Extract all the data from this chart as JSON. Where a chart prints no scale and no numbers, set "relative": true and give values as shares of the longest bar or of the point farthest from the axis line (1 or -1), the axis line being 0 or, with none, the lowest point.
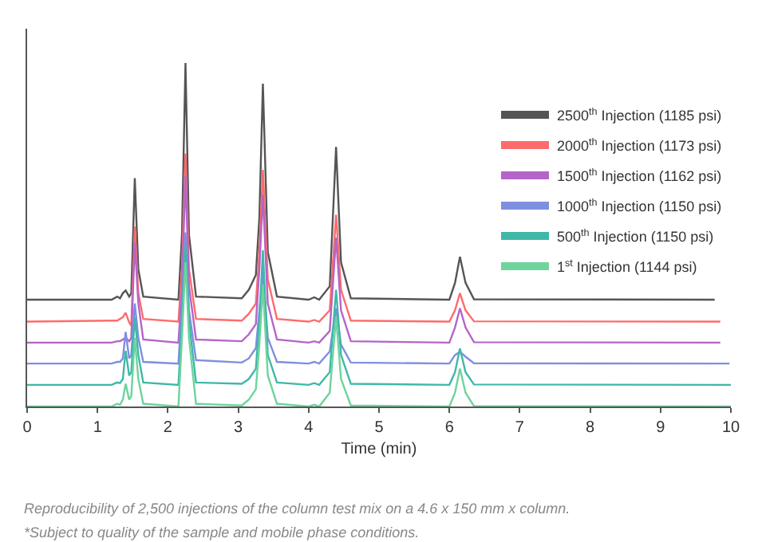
{
  "chart_data": {
    "type": "line",
    "relative": true,
    "xlabel": "Time (min)",
    "xlim": [
      0,
      10
    ],
    "xticks": [
      0,
      1,
      2,
      3,
      4,
      5,
      6,
      7,
      8,
      9,
      10
    ],
    "tick_labels": "x",
    "legend": "right",
    "marker": "none",
    "line_style": "solid",
    "annotations": [
      "Reproducibility of 2,500 injections of the column test mix on a 4.6 x 150 mm x column.",
      "*Subject to quality of the sample and mobile phase conditions."
    ],
    "series": [
      {
        "name": "2500$^{th}$ Injection (1185 psi)",
        "color": "#555555",
        "x": [
          0,
          1.2,
          1.28,
          1.32,
          1.36,
          1.4,
          1.45,
          1.48,
          1.53,
          1.58,
          1.65,
          2.15,
          2.2,
          2.25,
          2.3,
          2.4,
          3.05,
          3.15,
          3.25,
          3.3,
          3.35,
          3.42,
          3.55,
          4.0,
          4.08,
          4.15,
          4.3,
          4.39,
          4.46,
          4.6,
          6.0,
          6.08,
          6.15,
          6.23,
          6.35,
          9.77
        ],
        "values": [
          0.311,
          0.311,
          0.32,
          0.315,
          0.33,
          0.338,
          0.32,
          0.33,
          0.665,
          0.4,
          0.32,
          0.311,
          0.5,
          1.0,
          0.5,
          0.32,
          0.315,
          0.34,
          0.383,
          0.55,
          0.94,
          0.45,
          0.32,
          0.311,
          0.318,
          0.311,
          0.35,
          0.756,
          0.42,
          0.315,
          0.311,
          0.36,
          0.436,
          0.36,
          0.312,
          0.311
        ]
      },
      {
        "name": "2000$^{th}$ Injection (1173 psi)",
        "color": "#ff6b6b",
        "x": [
          0,
          1.2,
          1.28,
          1.32,
          1.36,
          1.4,
          1.45,
          1.48,
          1.53,
          1.58,
          1.65,
          2.15,
          2.2,
          2.25,
          2.3,
          2.4,
          3.05,
          3.15,
          3.25,
          3.3,
          3.35,
          3.42,
          3.55,
          4.0,
          4.08,
          4.15,
          4.3,
          4.39,
          4.46,
          4.6,
          6.0,
          6.08,
          6.15,
          6.23,
          6.35,
          9.85
        ],
        "values": [
          0.247,
          0.25,
          0.25,
          0.255,
          0.26,
          0.273,
          0.245,
          0.235,
          0.524,
          0.33,
          0.255,
          0.247,
          0.4,
          0.737,
          0.4,
          0.255,
          0.25,
          0.27,
          0.3,
          0.45,
          0.689,
          0.37,
          0.255,
          0.247,
          0.252,
          0.247,
          0.28,
          0.558,
          0.34,
          0.25,
          0.247,
          0.28,
          0.33,
          0.28,
          0.248,
          0.247
        ]
      },
      {
        "name": "1500$^{th}$ Injection (1162 psi)",
        "color": "#b565c8",
        "x": [
          0,
          1.2,
          1.28,
          1.32,
          1.36,
          1.4,
          1.45,
          1.48,
          1.53,
          1.58,
          1.65,
          2.15,
          2.2,
          2.25,
          2.3,
          2.4,
          3.05,
          3.15,
          3.25,
          3.3,
          3.35,
          3.42,
          3.55,
          4.0,
          4.08,
          4.15,
          4.3,
          4.39,
          4.46,
          4.6,
          6.0,
          6.08,
          6.15,
          6.23,
          6.35,
          9.85
        ],
        "values": [
          0.186,
          0.186,
          0.19,
          0.19,
          0.195,
          0.2,
          0.19,
          0.2,
          0.477,
          0.3,
          0.195,
          0.186,
          0.35,
          0.671,
          0.35,
          0.195,
          0.19,
          0.21,
          0.24,
          0.4,
          0.617,
          0.3,
          0.195,
          0.186,
          0.19,
          0.186,
          0.22,
          0.492,
          0.28,
          0.19,
          0.186,
          0.23,
          0.286,
          0.23,
          0.187,
          0.186
        ]
      },
      {
        "name": "1000$^{th}$ Injection (1150 psi)",
        "color": "#7f8fe0",
        "x": [
          0,
          1.2,
          1.28,
          1.32,
          1.36,
          1.4,
          1.45,
          1.48,
          1.53,
          1.58,
          1.65,
          2.15,
          2.2,
          2.25,
          2.3,
          2.4,
          3.05,
          3.15,
          3.25,
          3.3,
          3.35,
          3.42,
          3.55,
          4.0,
          4.08,
          4.15,
          4.3,
          4.39,
          4.46,
          4.6,
          6.0,
          6.08,
          6.15,
          6.23,
          6.35,
          9.98
        ],
        "values": [
          0.125,
          0.125,
          0.13,
          0.13,
          0.14,
          0.217,
          0.14,
          0.15,
          0.3,
          0.2,
          0.13,
          0.125,
          0.3,
          0.507,
          0.28,
          0.135,
          0.128,
          0.14,
          0.17,
          0.28,
          0.393,
          0.2,
          0.13,
          0.125,
          0.13,
          0.125,
          0.16,
          0.286,
          0.18,
          0.128,
          0.125,
          0.15,
          0.159,
          0.145,
          0.126,
          0.125
        ]
      },
      {
        "name": "500$^{th}$ Injection (1150 psi)",
        "color": "#3fb8a8",
        "x": [
          0,
          1.2,
          1.28,
          1.32,
          1.36,
          1.4,
          1.45,
          1.48,
          1.53,
          1.58,
          1.65,
          2.15,
          2.2,
          2.25,
          2.3,
          2.4,
          3.05,
          3.15,
          3.25,
          3.3,
          3.35,
          3.42,
          3.55,
          4.0,
          4.08,
          4.15,
          4.3,
          4.39,
          4.46,
          4.6,
          6.0,
          6.08,
          6.15,
          6.23,
          6.35,
          10
        ],
        "values": [
          0.063,
          0.063,
          0.07,
          0.068,
          0.08,
          0.162,
          0.09,
          0.1,
          0.26,
          0.15,
          0.07,
          0.063,
          0.25,
          0.47,
          0.25,
          0.07,
          0.066,
          0.08,
          0.11,
          0.25,
          0.455,
          0.15,
          0.07,
          0.063,
          0.068,
          0.063,
          0.1,
          0.34,
          0.15,
          0.066,
          0.063,
          0.1,
          0.169,
          0.1,
          0.064,
          0.063
        ]
      },
      {
        "name": "1$^{st}$ Injection (1144 psi)",
        "color": "#6fd39e",
        "x": [
          0,
          1.2,
          1.28,
          1.32,
          1.36,
          1.4,
          1.45,
          1.48,
          1.53,
          1.58,
          1.65,
          2.15,
          2.2,
          2.25,
          2.3,
          2.4,
          3.05,
          3.15,
          3.25,
          3.3,
          3.35,
          3.42,
          3.55,
          4.0,
          4.08,
          4.15,
          4.3,
          4.39,
          4.46,
          4.6,
          6.0,
          6.08,
          6.15,
          6.23,
          6.35,
          10
        ],
        "values": [
          0,
          0,
          0.008,
          0.005,
          0.02,
          0.066,
          0.02,
          0.03,
          0.2,
          0.08,
          0.008,
          0,
          0.2,
          0.42,
          0.2,
          0.008,
          0.003,
          0.02,
          0.05,
          0.18,
          0.35,
          0.09,
          0.008,
          0,
          0.005,
          0,
          0.04,
          0.26,
          0.08,
          0.003,
          0,
          0.04,
          0.11,
          0.04,
          0.001,
          0
        ]
      }
    ]
  }
}
